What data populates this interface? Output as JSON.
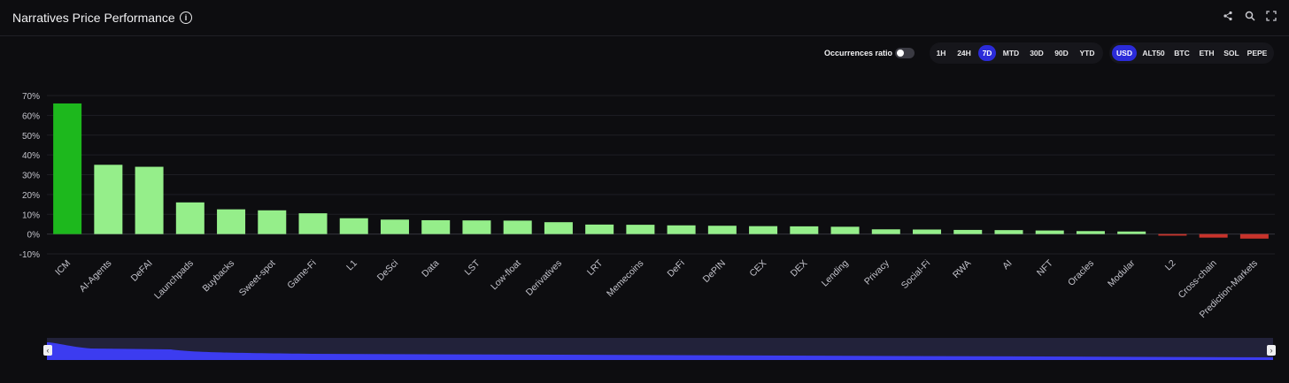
{
  "header": {
    "title": "Narratives Price Performance",
    "info_icon": "info-icon",
    "icons": [
      "share-icon",
      "search-icon",
      "fullscreen-icon"
    ]
  },
  "controls": {
    "occurrences_label": "Occurrences ratio",
    "occurrences_on": false,
    "time_ranges": [
      "1H",
      "24H",
      "7D",
      "MTD",
      "30D",
      "90D",
      "YTD"
    ],
    "time_selected": "7D",
    "bases": [
      "USD",
      "ALT50",
      "BTC",
      "ETH",
      "SOL",
      "PEPE"
    ],
    "base_selected": "USD"
  },
  "colors": {
    "top": "#1db81d",
    "positive": "#95ee8a",
    "negative": "#c8332b",
    "accent": "#2b2bd9"
  },
  "chart_data": {
    "type": "bar",
    "categories": [
      "ICM",
      "AI-Agents",
      "DeFAI",
      "Launchpads",
      "Buybacks",
      "Sweet-spot",
      "Game-Fi",
      "L1",
      "DeSci",
      "Data",
      "LST",
      "Low-float",
      "Derivatives",
      "LRT",
      "Memecoins",
      "DeFi",
      "DePIN",
      "CEX",
      "DEX",
      "Lending",
      "Privacy",
      "Social-Fi",
      "RWA",
      "AI",
      "NFT",
      "Oracles",
      "Modular",
      "L2",
      "Cross-chain",
      "Prediction-Markets"
    ],
    "values": [
      66,
      35,
      34,
      16,
      12.5,
      12,
      10.5,
      8,
      7.3,
      7,
      6.9,
      6.8,
      6,
      4.8,
      4.7,
      4.4,
      4.2,
      4,
      3.9,
      3.7,
      2.4,
      2.3,
      2.1,
      2,
      1.8,
      1.5,
      1.3,
      -0.8,
      -1.8,
      -2.3
    ],
    "yticks": [
      "70%",
      "60%",
      "50%",
      "40%",
      "30%",
      "20%",
      "10%",
      "0%",
      "-10%"
    ],
    "ylim": [
      -10,
      70
    ],
    "grid": true
  }
}
